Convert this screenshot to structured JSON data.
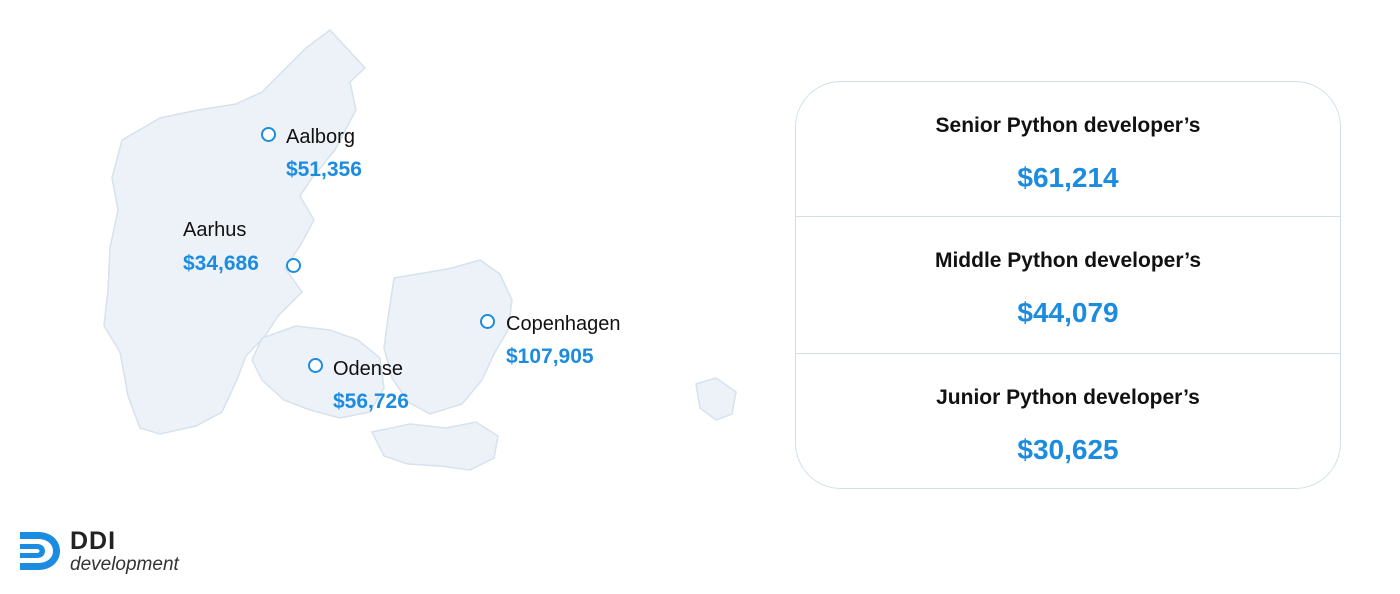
{
  "map": {
    "cities": [
      {
        "id": "aalborg",
        "name": "Aalborg",
        "salary": "$51,356"
      },
      {
        "id": "aarhus",
        "name": "Aarhus",
        "salary": "$34,686"
      },
      {
        "id": "copenhagen",
        "name": "Copenhagen",
        "salary": "$107,905"
      },
      {
        "id": "odense",
        "name": "Odense",
        "salary": "$56,726"
      }
    ]
  },
  "salaries": [
    {
      "role": "Senior Python developer’s",
      "amount": "$61,214"
    },
    {
      "role": "Middle Python developer’s",
      "amount": "$44,079"
    },
    {
      "role": "Junior Python developer’s",
      "amount": "$30,625"
    }
  ],
  "logo": {
    "title": "DDI",
    "subtitle": "development"
  },
  "colors": {
    "accent": "#1c8ce0",
    "land": "#ecf2f8",
    "card_border": "#cfe0ea"
  }
}
